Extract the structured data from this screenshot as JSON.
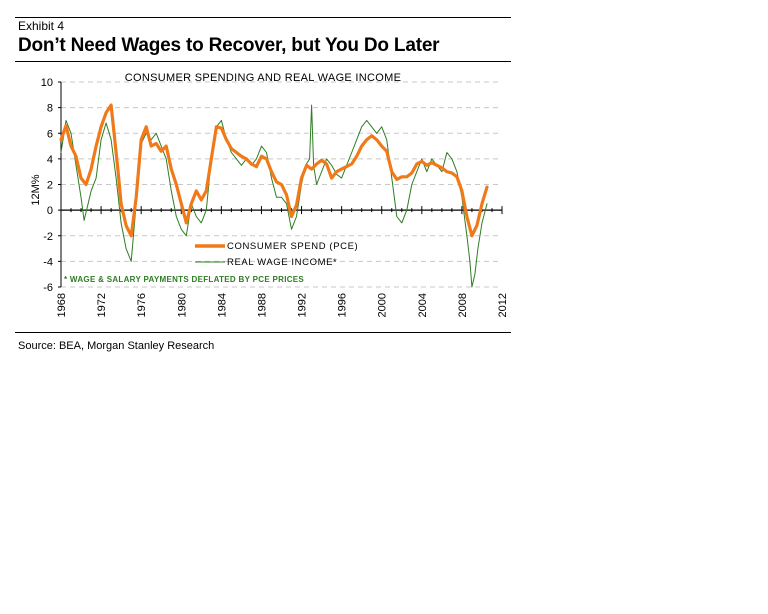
{
  "exhibit_label": "Exhibit 4",
  "headline": "Don’t Need Wages to Recover, but You Do Later",
  "source": "Source: BEA, Morgan Stanley Research",
  "colors": {
    "pce": "#f07a1a",
    "wage": "#2e7d23",
    "grid": "#c8c8c8"
  },
  "chart_data": {
    "type": "line",
    "title": "CONSUMER SPENDING AND REAL WAGE INCOME",
    "ylabel": "12M%",
    "xlabel": "",
    "xlim": [
      1968,
      2012
    ],
    "ylim": [
      -6,
      10
    ],
    "y_ticks": [
      -6,
      -4,
      -2,
      0,
      2,
      4,
      6,
      8,
      10
    ],
    "x_ticks": [
      "1968",
      "1972",
      "1976",
      "1980",
      "1984",
      "1988",
      "1992",
      "1996",
      "2000",
      "2004",
      "2008",
      "2012"
    ],
    "grid": "horizontal dashed",
    "legend_position": "lower-center",
    "annotation": "* WAGE & SALARY PAYMENTS DEFLATED BY PCE PRICES",
    "series": [
      {
        "name": "CONSUMER SPEND (PCE)",
        "x": [
          1968.0,
          1968.5,
          1969.0,
          1969.5,
          1970.0,
          1970.5,
          1971.0,
          1971.5,
          1972.0,
          1972.5,
          1973.0,
          1973.3,
          1973.7,
          1974.0,
          1974.5,
          1975.0,
          1975.5,
          1976.0,
          1976.5,
          1977.0,
          1977.5,
          1978.0,
          1978.5,
          1979.0,
          1979.5,
          1980.0,
          1980.5,
          1981.0,
          1981.5,
          1982.0,
          1982.5,
          1983.0,
          1983.5,
          1984.0,
          1984.5,
          1985.0,
          1985.5,
          1986.0,
          1986.5,
          1987.0,
          1987.5,
          1988.0,
          1988.5,
          1989.0,
          1989.5,
          1990.0,
          1990.5,
          1991.0,
          1991.5,
          1992.0,
          1992.5,
          1993.0,
          1993.5,
          1994.0,
          1994.5,
          1995.0,
          1995.5,
          1996.0,
          1996.5,
          1997.0,
          1997.5,
          1998.0,
          1998.5,
          1999.0,
          1999.5,
          2000.0,
          2000.5,
          2001.0,
          2001.5,
          2002.0,
          2002.5,
          2003.0,
          2003.5,
          2004.0,
          2004.5,
          2005.0,
          2005.5,
          2006.0,
          2006.5,
          2007.0,
          2007.5,
          2008.0,
          2008.5,
          2009.0,
          2009.5,
          2010.0,
          2010.5
        ],
        "values": [
          5.5,
          6.6,
          5.0,
          4.2,
          2.5,
          2.0,
          3.2,
          5.0,
          6.5,
          7.6,
          8.2,
          6.0,
          3.0,
          0.5,
          -1.2,
          -2.0,
          1.0,
          5.5,
          6.5,
          5.0,
          5.2,
          4.6,
          5.0,
          3.2,
          2.0,
          0.5,
          -1.0,
          0.5,
          1.5,
          0.8,
          1.5,
          4.0,
          6.5,
          6.4,
          5.5,
          4.8,
          4.5,
          4.2,
          4.0,
          3.6,
          3.4,
          4.2,
          4.0,
          3.0,
          2.2,
          2.0,
          1.2,
          -0.5,
          0.4,
          2.5,
          3.5,
          3.2,
          3.6,
          3.9,
          3.6,
          2.5,
          3.0,
          3.2,
          3.4,
          3.6,
          4.2,
          5.0,
          5.5,
          5.8,
          5.5,
          5.0,
          4.6,
          3.0,
          2.4,
          2.6,
          2.6,
          2.9,
          3.6,
          3.8,
          3.5,
          3.7,
          3.5,
          3.3,
          3.0,
          2.9,
          2.6,
          1.5,
          -0.5,
          -2.0,
          -1.2,
          0.5,
          1.8
        ]
      },
      {
        "name": "REAL WAGE INCOME*",
        "x": [
          1968.0,
          1968.5,
          1969.0,
          1969.5,
          1970.0,
          1970.3,
          1970.7,
          1971.0,
          1971.5,
          1972.0,
          1972.5,
          1973.0,
          1973.5,
          1974.0,
          1974.5,
          1975.0,
          1975.5,
          1976.0,
          1976.5,
          1977.0,
          1977.5,
          1978.0,
          1978.5,
          1979.0,
          1979.5,
          1980.0,
          1980.5,
          1981.0,
          1981.5,
          1982.0,
          1982.5,
          1983.0,
          1983.5,
          1984.0,
          1984.5,
          1985.0,
          1985.5,
          1986.0,
          1986.5,
          1987.0,
          1987.5,
          1988.0,
          1988.5,
          1989.0,
          1989.5,
          1990.0,
          1990.5,
          1991.0,
          1991.5,
          1992.0,
          1992.4,
          1992.8,
          1993.0,
          1993.2,
          1993.5,
          1994.0,
          1994.5,
          1995.0,
          1995.5,
          1996.0,
          1996.5,
          1997.0,
          1997.5,
          1998.0,
          1998.5,
          1999.0,
          1999.5,
          2000.0,
          2000.5,
          2001.0,
          2001.5,
          2002.0,
          2002.5,
          2003.0,
          2003.5,
          2004.0,
          2004.5,
          2005.0,
          2005.5,
          2006.0,
          2006.5,
          2007.0,
          2007.5,
          2008.0,
          2008.5,
          2008.8,
          2009.0,
          2009.3,
          2009.6,
          2010.0,
          2010.5
        ],
        "values": [
          4.5,
          7.0,
          6.0,
          3.5,
          1.0,
          -0.8,
          0.5,
          1.5,
          2.5,
          5.5,
          6.8,
          5.5,
          2.5,
          -1.0,
          -3.0,
          -4.0,
          0.5,
          5.2,
          6.0,
          5.5,
          6.0,
          5.0,
          4.0,
          1.5,
          -0.5,
          -1.5,
          -2.0,
          0.5,
          -0.5,
          -1.0,
          0.0,
          4.0,
          6.5,
          7.0,
          5.5,
          4.5,
          4.0,
          3.5,
          4.0,
          3.5,
          4.0,
          5.0,
          4.5,
          2.5,
          1.0,
          1.0,
          0.5,
          -1.5,
          -0.5,
          2.0,
          3.5,
          4.0,
          8.2,
          3.5,
          2.0,
          3.0,
          4.0,
          3.5,
          2.8,
          2.5,
          3.5,
          4.5,
          5.5,
          6.5,
          7.0,
          6.5,
          6.0,
          6.5,
          5.5,
          2.5,
          -0.5,
          -1.0,
          0.0,
          2.0,
          3.0,
          4.0,
          3.0,
          4.0,
          3.5,
          3.0,
          4.5,
          4.0,
          3.0,
          1.0,
          -2.0,
          -4.0,
          -6.0,
          -5.0,
          -3.0,
          -1.0,
          0.5
        ]
      }
    ]
  }
}
